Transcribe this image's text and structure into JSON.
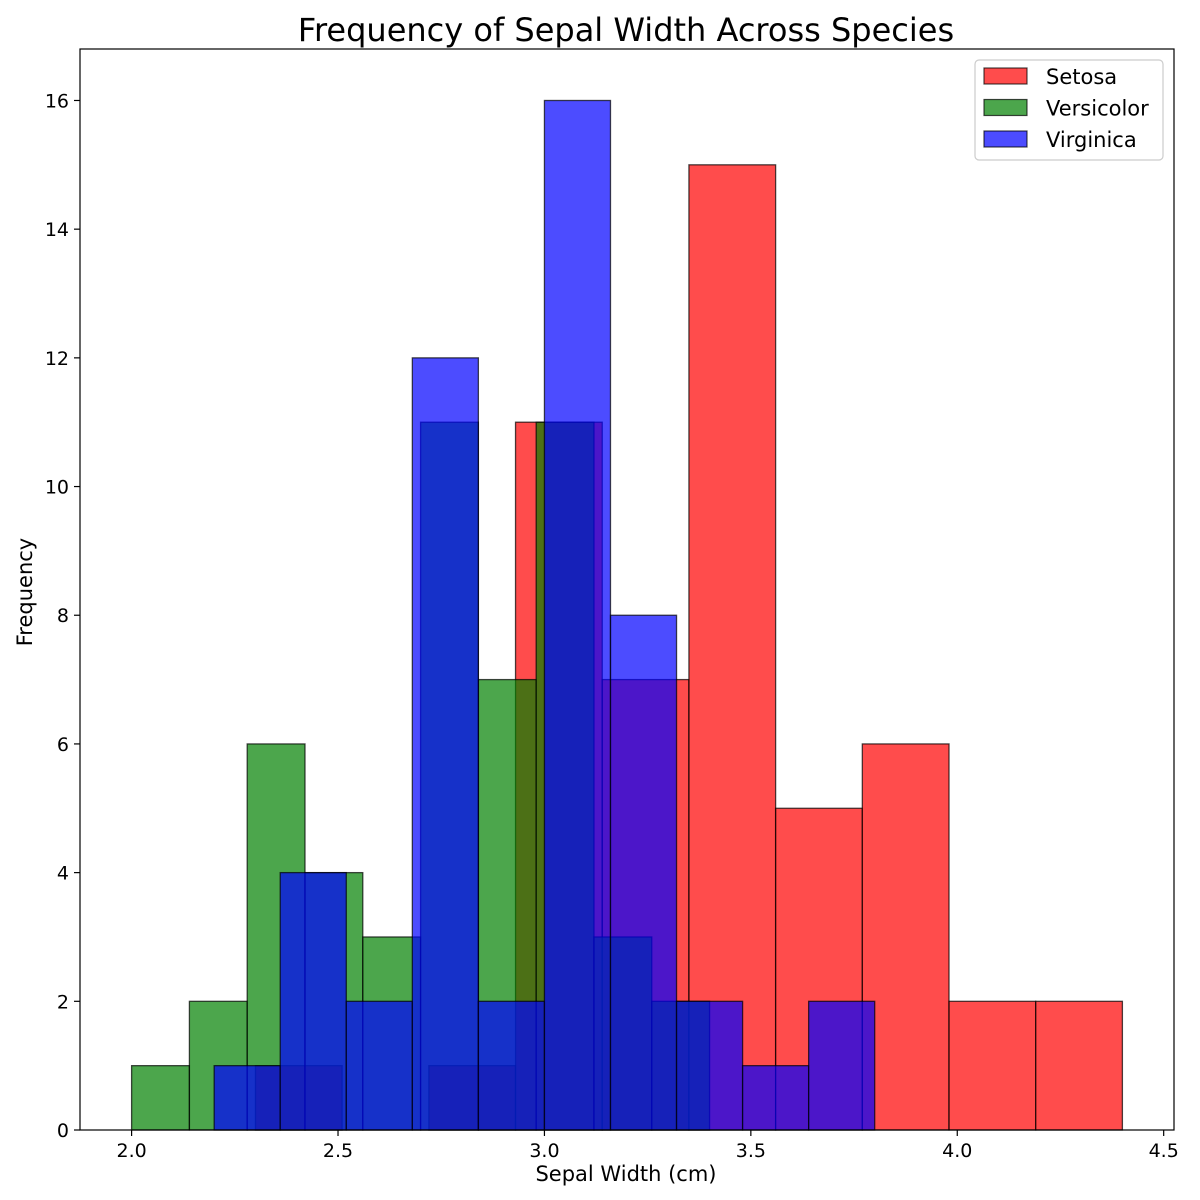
{
  "chart_data": {
    "type": "bar",
    "title": "Frequency of Sepal Width Across Species",
    "xlabel": "Sepal Width (cm)",
    "ylabel": "Frequency",
    "xlim": [
      1.875,
      4.525
    ],
    "ylim": [
      0,
      16.8
    ],
    "xticks": [
      2.0,
      2.5,
      3.0,
      3.5,
      4.0,
      4.5
    ],
    "xtick_labels": [
      "2.0",
      "2.5",
      "3.0",
      "3.5",
      "4.0",
      "4.5"
    ],
    "yticks": [
      0,
      2,
      4,
      6,
      8,
      10,
      12,
      14,
      16
    ],
    "ytick_labels": [
      "0",
      "2",
      "4",
      "6",
      "8",
      "10",
      "12",
      "14",
      "16"
    ],
    "grid": false,
    "legend_position": "top-right",
    "series": [
      {
        "name": "Setosa",
        "color": "#ff0000",
        "opacity": 0.7,
        "bin_edges": [
          2.3,
          2.51,
          2.72,
          2.93,
          3.14,
          3.35,
          3.56,
          3.77,
          3.98,
          4.19,
          4.4
        ],
        "values": [
          1,
          0,
          1,
          11,
          7,
          15,
          5,
          6,
          2,
          2
        ]
      },
      {
        "name": "Versicolor",
        "color": "#008000",
        "opacity": 0.7,
        "bin_edges": [
          2.0,
          2.14,
          2.28,
          2.42,
          2.56,
          2.7,
          2.84,
          2.98,
          3.12,
          3.26,
          3.4
        ],
        "values": [
          1,
          2,
          6,
          4,
          3,
          11,
          7,
          11,
          3,
          2
        ]
      },
      {
        "name": "Virginica",
        "color": "#0000ff",
        "opacity": 0.7,
        "bin_edges": [
          2.2,
          2.36,
          2.52,
          2.68,
          2.84,
          3.0,
          3.16,
          3.32,
          3.48,
          3.64,
          3.8
        ],
        "values": [
          1,
          4,
          2,
          12,
          2,
          16,
          8,
          2,
          1,
          2
        ]
      }
    ]
  }
}
